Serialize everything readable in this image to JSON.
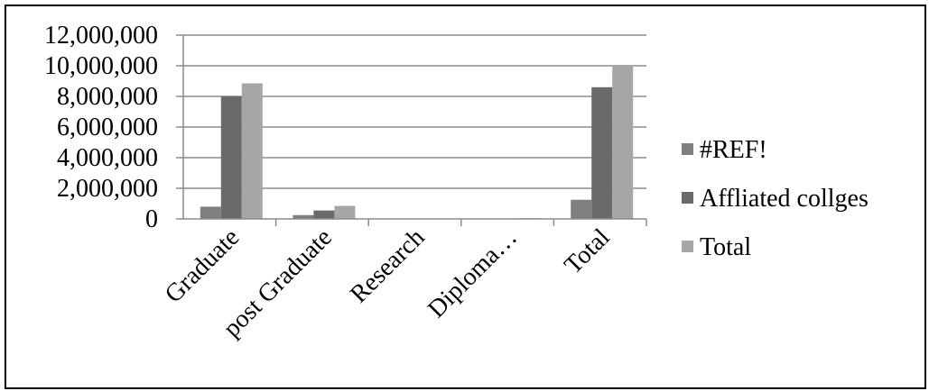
{
  "chart_data": {
    "type": "bar",
    "categories": [
      "Graduate",
      "post Graduate",
      "Research",
      "Diploma…",
      "Total"
    ],
    "series": [
      {
        "name": "#REF!",
        "color": "#7f7f7f",
        "values": [
          800000,
          250000,
          10000,
          15000,
          1250000
        ]
      },
      {
        "name": "Affliated collges",
        "color": "#6a6a6a",
        "values": [
          8000000,
          550000,
          10000,
          20000,
          8600000
        ]
      },
      {
        "name": "Total",
        "color": "#a6a6a6",
        "values": [
          8850000,
          850000,
          15000,
          50000,
          10000000
        ]
      }
    ],
    "ylim": [
      0,
      12000000
    ],
    "yticks": [
      0,
      2000000,
      4000000,
      6000000,
      8000000,
      10000000,
      12000000
    ],
    "ytick_labels": [
      "0",
      "2,000,000",
      "4,000,000",
      "6,000,000",
      "8,000,000",
      "10,000,000",
      "12,000,000"
    ],
    "grid": true,
    "legend_position": "right",
    "title": "",
    "xlabel": "",
    "ylabel": ""
  }
}
